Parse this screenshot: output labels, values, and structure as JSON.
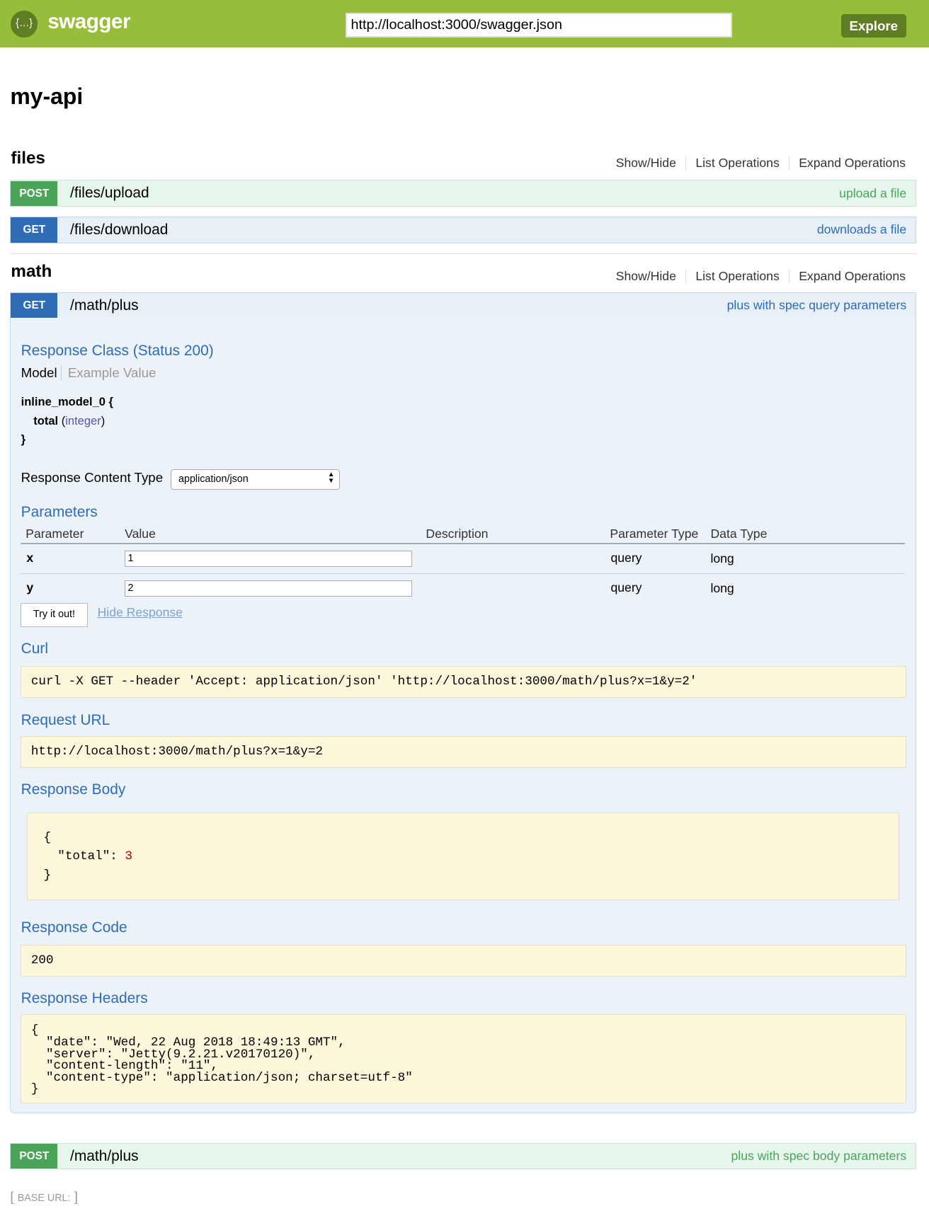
{
  "header": {
    "brand": "swagger",
    "url": "http://localhost:3000/swagger.json",
    "explore": "Explore",
    "logo_icon": "swagger-braces-icon"
  },
  "api_title": "my-api",
  "section_links": {
    "show_hide": "Show/Hide",
    "list": "List Operations",
    "expand": "Expand Operations"
  },
  "sections": [
    {
      "name": "files",
      "operations": [
        {
          "method": "POST",
          "path": "/files/upload",
          "summary": "upload a file"
        },
        {
          "method": "GET",
          "path": "/files/download",
          "summary": "downloads a file"
        }
      ]
    },
    {
      "name": "math",
      "operations": [
        {
          "method": "GET",
          "path": "/math/plus",
          "summary": "plus with spec query parameters"
        },
        {
          "method": "POST",
          "path": "/math/plus",
          "summary": "plus with spec body parameters"
        }
      ]
    }
  ],
  "expanded": {
    "response_class": "Response Class (Status 200)",
    "tabs": {
      "model": "Model",
      "example": "Example Value"
    },
    "model": {
      "name": "inline_model_0 {",
      "prop": "total",
      "type_open": "(",
      "type": "integer",
      "type_close": ")",
      "close": "}"
    },
    "content_type_label": "Response Content Type",
    "content_type": "application/json",
    "parameters_title": "Parameters",
    "columns": [
      "Parameter",
      "Value",
      "Description",
      "Parameter Type",
      "Data Type"
    ],
    "params": [
      {
        "name": "x",
        "value": "1",
        "ptype": "query",
        "dtype": "long"
      },
      {
        "name": "y",
        "value": "2",
        "ptype": "query",
        "dtype": "long"
      }
    ],
    "try_button": "Try it out!",
    "hide_response": "Hide Response",
    "curl_title": "Curl",
    "curl": "curl -X GET --header 'Accept: application/json' 'http://localhost:3000/math/plus?x=1&y=2'",
    "request_url_title": "Request URL",
    "request_url": "http://localhost:3000/math/plus?x=1&y=2",
    "response_body_title": "Response Body",
    "body": {
      "open": "{",
      "key": "\"total\": ",
      "value": "3",
      "close": "}"
    },
    "response_code_title": "Response Code",
    "response_code": "200",
    "response_headers_title": "Response Headers",
    "response_headers": "{\n  \"date\": \"Wed, 22 Aug 2018 18:49:13 GMT\",\n  \"server\": \"Jetty(9.2.21.v20170120)\",\n  \"content-length\": \"11\",\n  \"content-type\": \"application/json; charset=utf-8\"\n}"
  },
  "footer": {
    "base_url": "BASE URL:"
  }
}
